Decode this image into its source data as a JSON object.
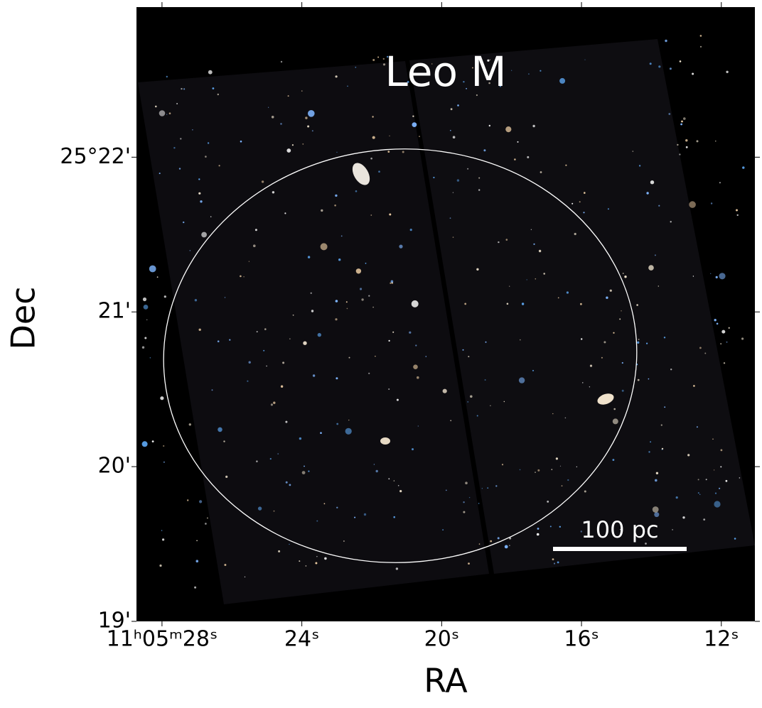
{
  "chart_data": {
    "type": "image",
    "title": "Leo M",
    "xlabel": "RA",
    "ylabel": "Dec",
    "scale_bar_label": "100 pc",
    "xlim": [
      28.73,
      11.04
    ],
    "xticks": [
      {
        "value": 28,
        "label": "11ʰ05ᵐ28ˢ"
      },
      {
        "value": 24,
        "label": "24ˢ"
      },
      {
        "value": 20,
        "label": "20ˢ"
      },
      {
        "value": 16,
        "label": "16ˢ"
      },
      {
        "value": 12,
        "label": "12ˢ"
      }
    ],
    "ylim": [
      19,
      22.97
    ],
    "yticks": [
      {
        "value": 22,
        "label": "25°22'"
      },
      {
        "value": 21,
        "label": "21'"
      },
      {
        "value": 20,
        "label": "20'"
      },
      {
        "value": 19,
        "label": "19'"
      }
    ]
  }
}
